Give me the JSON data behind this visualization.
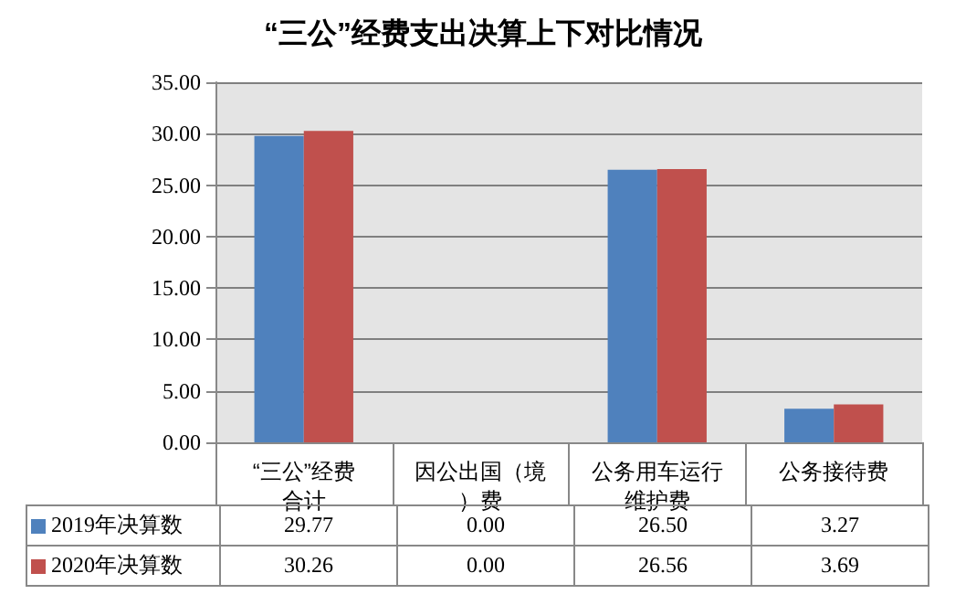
{
  "chart_data": {
    "type": "bar",
    "title": "“三公”经费支出决算上下对比情况",
    "categories": [
      "“三公”经费合计",
      "因公出国（境）费",
      "公务用车运行维护费",
      "公务接待费"
    ],
    "legend": "bottom",
    "series": [
      {
        "name": "2019年决算数",
        "color": "#4f81bd",
        "values": [
          29.77,
          0,
          26.5,
          3.27
        ],
        "value_labels": [
          "29.77",
          "0.00",
          "26.50",
          "3.27"
        ]
      },
      {
        "name": "2020年决算数",
        "color": "#c0504d",
        "values": [
          30.26,
          0,
          26.56,
          3.69
        ],
        "value_labels": [
          "30.26",
          "0.00",
          "26.56",
          "3.69"
        ]
      }
    ],
    "ylim": [
      0,
      35
    ],
    "yticks": [
      {
        "value": 0,
        "label": "0.00"
      },
      {
        "value": 5,
        "label": "5.00"
      },
      {
        "value": 10,
        "label": "10.00"
      },
      {
        "value": 15,
        "label": "15.00"
      },
      {
        "value": 20,
        "label": "20.00"
      },
      {
        "value": 25,
        "label": "25.00"
      },
      {
        "value": 30,
        "label": "30.00"
      },
      {
        "value": 35,
        "label": "35.00"
      }
    ],
    "grid": "y"
  }
}
